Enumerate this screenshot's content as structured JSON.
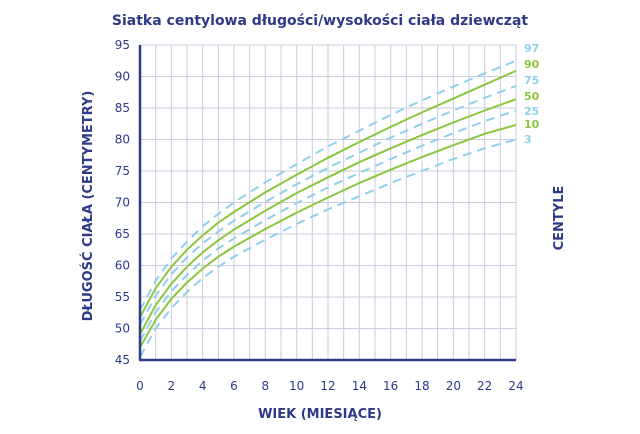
{
  "chart_data": {
    "type": "line",
    "title": "Siatka centylowa długości/wysokości ciała dziewcząt",
    "xlabel": "WIEK (MIESIĄCE)",
    "ylabel": "DŁUGOŚĆ CIAŁA (CENTYMETRY)",
    "legend_title": "CENTYLE",
    "xlim": [
      0,
      24
    ],
    "ylim": [
      45,
      95
    ],
    "x_ticks": [
      "0",
      "2",
      "4",
      "6",
      "8",
      "10",
      "12",
      "14",
      "16",
      "18",
      "20",
      "22",
      "24"
    ],
    "y_ticks": [
      "45",
      "50",
      "55",
      "60",
      "65",
      "70",
      "75",
      "80",
      "85",
      "90",
      "95"
    ],
    "grid": true,
    "x": [
      0,
      1,
      2,
      3,
      4,
      5,
      6,
      8,
      10,
      12,
      14,
      16,
      18,
      20,
      22,
      24
    ],
    "series": [
      {
        "name": "97",
        "color": "#8fd0ea",
        "dash": true,
        "values": [
          52.9,
          57.6,
          61.1,
          63.8,
          66.2,
          68.2,
          70.0,
          73.2,
          76.1,
          78.9,
          81.4,
          83.9,
          86.2,
          88.4,
          90.5,
          92.5
        ]
      },
      {
        "name": "90",
        "color": "#8cc63f",
        "dash": false,
        "values": [
          51.8,
          56.4,
          59.8,
          62.5,
          64.8,
          66.8,
          68.5,
          71.6,
          74.4,
          77.1,
          79.6,
          82.0,
          84.3,
          86.5,
          88.7,
          90.9
        ]
      },
      {
        "name": "75",
        "color": "#8fd0ea",
        "dash": true,
        "values": [
          50.6,
          55.2,
          58.6,
          61.3,
          63.5,
          65.4,
          67.1,
          70.1,
          72.9,
          75.5,
          77.9,
          80.3,
          82.5,
          84.6,
          86.6,
          88.5
        ]
      },
      {
        "name": "50",
        "color": "#8cc63f",
        "dash": false,
        "values": [
          49.1,
          53.7,
          57.1,
          59.8,
          62.1,
          64.0,
          65.7,
          68.7,
          71.5,
          74.0,
          76.4,
          78.6,
          80.7,
          82.7,
          84.6,
          86.4
        ]
      },
      {
        "name": "25",
        "color": "#8fd0ea",
        "dash": true,
        "values": [
          48.0,
          52.6,
          55.9,
          58.5,
          60.8,
          62.7,
          64.3,
          67.2,
          69.9,
          72.4,
          74.7,
          76.9,
          79.0,
          81.0,
          82.9,
          84.6
        ]
      },
      {
        "name": "10",
        "color": "#8cc63f",
        "dash": false,
        "values": [
          47.0,
          51.4,
          54.7,
          57.3,
          59.5,
          61.4,
          63.0,
          65.8,
          68.4,
          70.8,
          73.1,
          75.2,
          77.2,
          79.1,
          80.9,
          82.3
        ]
      },
      {
        "name": "3",
        "color": "#8fd0ea",
        "dash": true,
        "values": [
          45.5,
          50.0,
          53.2,
          55.8,
          58.0,
          59.8,
          61.4,
          64.1,
          66.6,
          68.9,
          71.0,
          73.1,
          75.0,
          76.9,
          78.6,
          80.0
        ]
      }
    ]
  }
}
